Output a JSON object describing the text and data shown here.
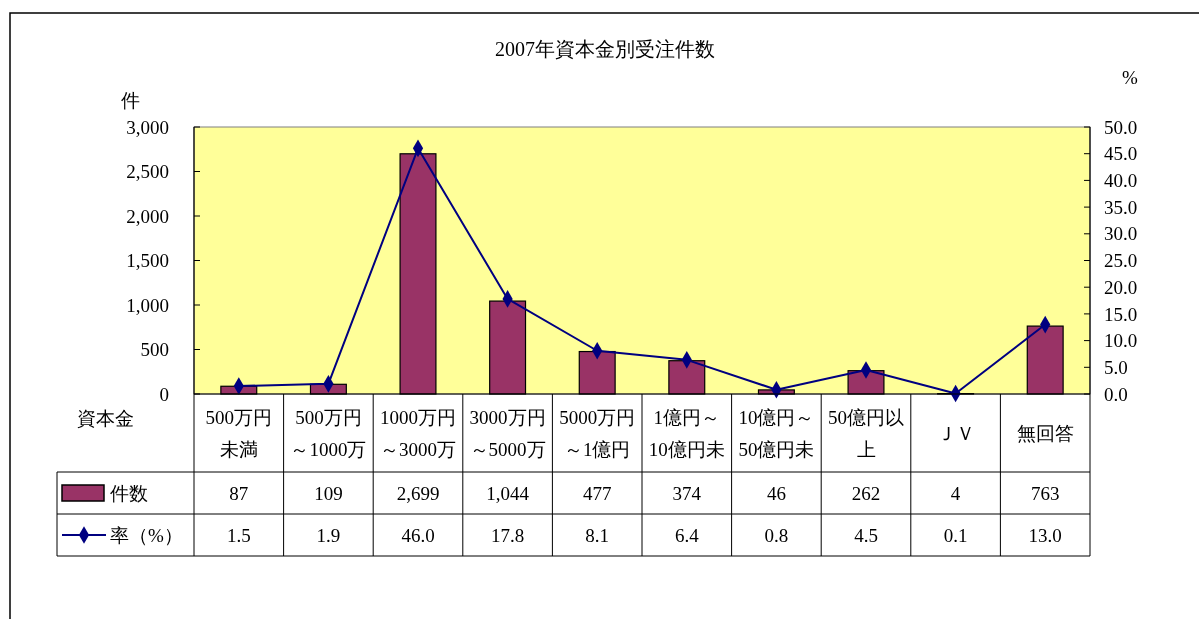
{
  "chart_data": {
    "type": "bar",
    "title": "2007年資本金別受注件数",
    "xlabel": "資本金",
    "ylabel": "件",
    "y2label": "%",
    "categories": [
      "500万円未満",
      "500万円～1000万",
      "1000万円～3000万",
      "3000万円～5000万",
      "5000万円～1億円",
      "1億円～10億円未",
      "10億円～50億円未",
      "50億円以上",
      "ＪＶ",
      "無回答"
    ],
    "series": [
      {
        "name": "件数",
        "color": "#993366",
        "values": [
          87,
          109,
          2699,
          1044,
          477,
          374,
          46,
          262,
          4,
          763
        ],
        "value_labels": [
          "87",
          "109",
          "2,699",
          "1,044",
          "477",
          "374",
          "46",
          "262",
          "4",
          "763"
        ]
      },
      {
        "name": "率（%）",
        "type": "line",
        "axis": "y2",
        "color": "#000080",
        "marker": "diamond",
        "values": [
          1.5,
          1.9,
          46.0,
          17.8,
          8.1,
          6.4,
          0.8,
          4.5,
          0.1,
          13.0
        ],
        "value_labels": [
          "1.5",
          "1.9",
          "46.0",
          "17.8",
          "8.1",
          "6.4",
          "0.8",
          "4.5",
          "0.1",
          "13.0"
        ]
      }
    ],
    "ylim": [
      0,
      3000
    ],
    "yticks": [
      0,
      500,
      {
        "value": 1000,
        "label": "1,000"
      },
      {
        "value": 1500,
        "label": "1,500"
      },
      {
        "value": 2000,
        "label": "2,000"
      },
      {
        "value": 2500,
        "label": "2,500"
      },
      {
        "value": 3000,
        "label": "3,000"
      }
    ],
    "y2lim": [
      0,
      50
    ],
    "y2ticks": [
      {
        "value": 0,
        "label": "0.0"
      },
      {
        "value": 5,
        "label": "5.0"
      },
      {
        "value": 10,
        "label": "10.0"
      },
      {
        "value": 15,
        "label": "15.0"
      },
      {
        "value": 20,
        "label": "20.0"
      },
      {
        "value": 25,
        "label": "25.0"
      },
      {
        "value": 30,
        "label": "30.0"
      },
      {
        "value": 35,
        "label": "35.0"
      },
      {
        "value": 40,
        "label": "40.0"
      },
      {
        "value": 45,
        "label": "45.0"
      },
      {
        "value": 50,
        "label": "50.0"
      }
    ],
    "legend": "bottom"
  }
}
